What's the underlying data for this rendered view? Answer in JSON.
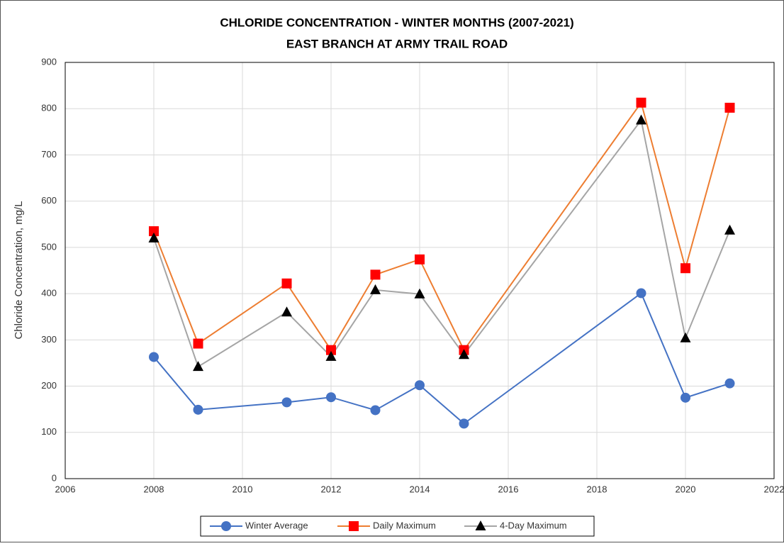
{
  "chart_data": {
    "type": "line",
    "title": "CHLORIDE CONCENTRATION - WINTER MONTHS (2007-2021)",
    "subtitle": "EAST BRANCH AT ARMY TRAIL ROAD",
    "y_label": "Chloride Concentration, mg/L",
    "x": [
      2008,
      2009,
      2011,
      2012,
      2013,
      2014,
      2015,
      2019,
      2020,
      2021
    ],
    "series": [
      {
        "name": "Winter Average",
        "color": "#4472c4",
        "marker": "circle",
        "marker_color": "#4472c4",
        "values": [
          263,
          149,
          165,
          176,
          148,
          202,
          119,
          401,
          175,
          206
        ]
      },
      {
        "name": "Daily Maximum",
        "color": "#ed7d31",
        "marker": "square",
        "marker_color": "#ff0000",
        "values": [
          535,
          292,
          422,
          278,
          441,
          474,
          278,
          813,
          455,
          802
        ]
      },
      {
        "name": "4-Day Maximum",
        "color": "#a5a5a5",
        "marker": "triangle",
        "marker_color": "#000000",
        "values": [
          520,
          242,
          360,
          264,
          408,
          399,
          268,
          775,
          304,
          537
        ]
      }
    ],
    "xlim": [
      2006,
      2022
    ],
    "xticks": [
      2006,
      2008,
      2010,
      2012,
      2014,
      2016,
      2018,
      2020,
      2022
    ],
    "ylim": [
      0,
      900
    ],
    "yticks": [
      0,
      100,
      200,
      300,
      400,
      500,
      600,
      700,
      800,
      900
    ],
    "grid": true,
    "legend": "bottom"
  }
}
